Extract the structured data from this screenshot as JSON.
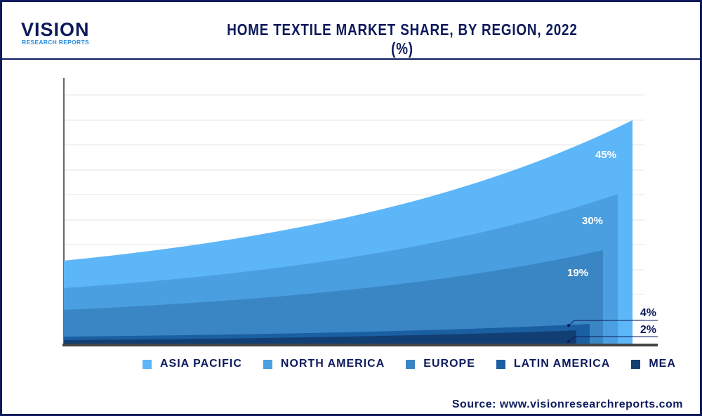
{
  "logo": {
    "main": "VISION",
    "sub": "RESEARCH REPORTS"
  },
  "title": "HOME TEXTILE MARKET SHARE, BY REGION, 2022 (%)",
  "source": "Source: www.visionresearchreports.com",
  "chart_data": {
    "type": "area",
    "title": "HOME TEXTILE MARKET SHARE, BY REGION, 2022 (%)",
    "grid": true,
    "legend_placement": "bottom",
    "series": [
      {
        "name": "ASIA PACIFIC",
        "value": 45,
        "label": "45%",
        "color": "#5db6f8"
      },
      {
        "name": "NORTH AMERICA",
        "value": 30,
        "label": "30%",
        "color": "#4a9fe0"
      },
      {
        "name": "EUROPE",
        "value": 19,
        "label": "19%",
        "color": "#3a86c4"
      },
      {
        "name": "LATIN AMERICA",
        "value": 4,
        "label": "4%",
        "color": "#1b5fa3"
      },
      {
        "name": "MEA",
        "value": 2,
        "label": "2%",
        "color": "#123f73"
      }
    ]
  }
}
